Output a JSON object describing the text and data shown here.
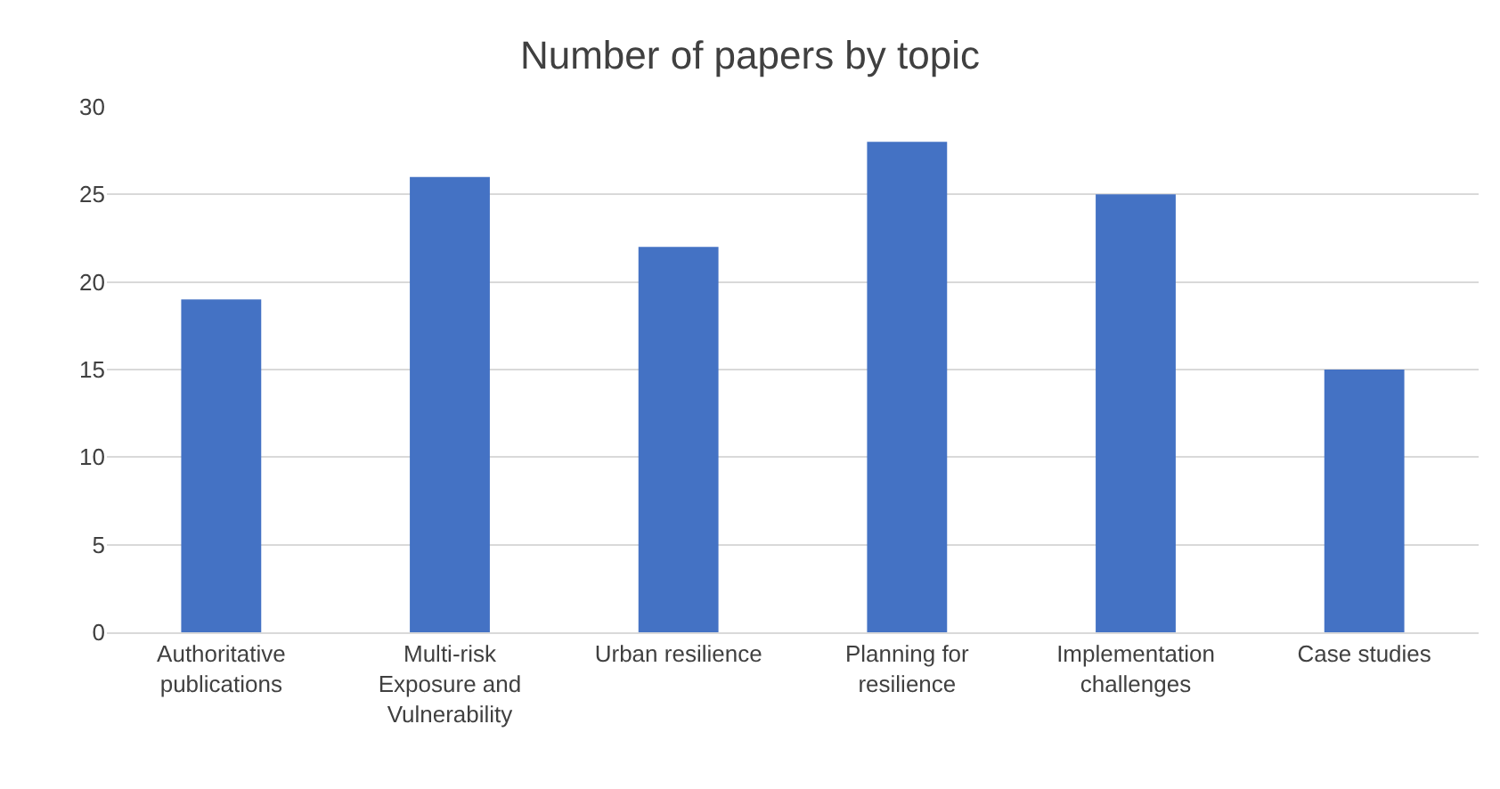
{
  "chart_data": {
    "type": "bar",
    "title": "Number of papers by topic",
    "categories": [
      "Authoritative publications",
      "Multi-risk Exposure and Vulnerability",
      "Urban resilience",
      "Planning for resilience",
      "Implementation challenges",
      "Case studies"
    ],
    "values": [
      19,
      26,
      22,
      28,
      25,
      15
    ],
    "color": "#4472c4",
    "ylim": [
      0,
      30
    ],
    "yticks": [
      0,
      5,
      10,
      15,
      20,
      25,
      30
    ],
    "grid": "y",
    "legend": false
  }
}
